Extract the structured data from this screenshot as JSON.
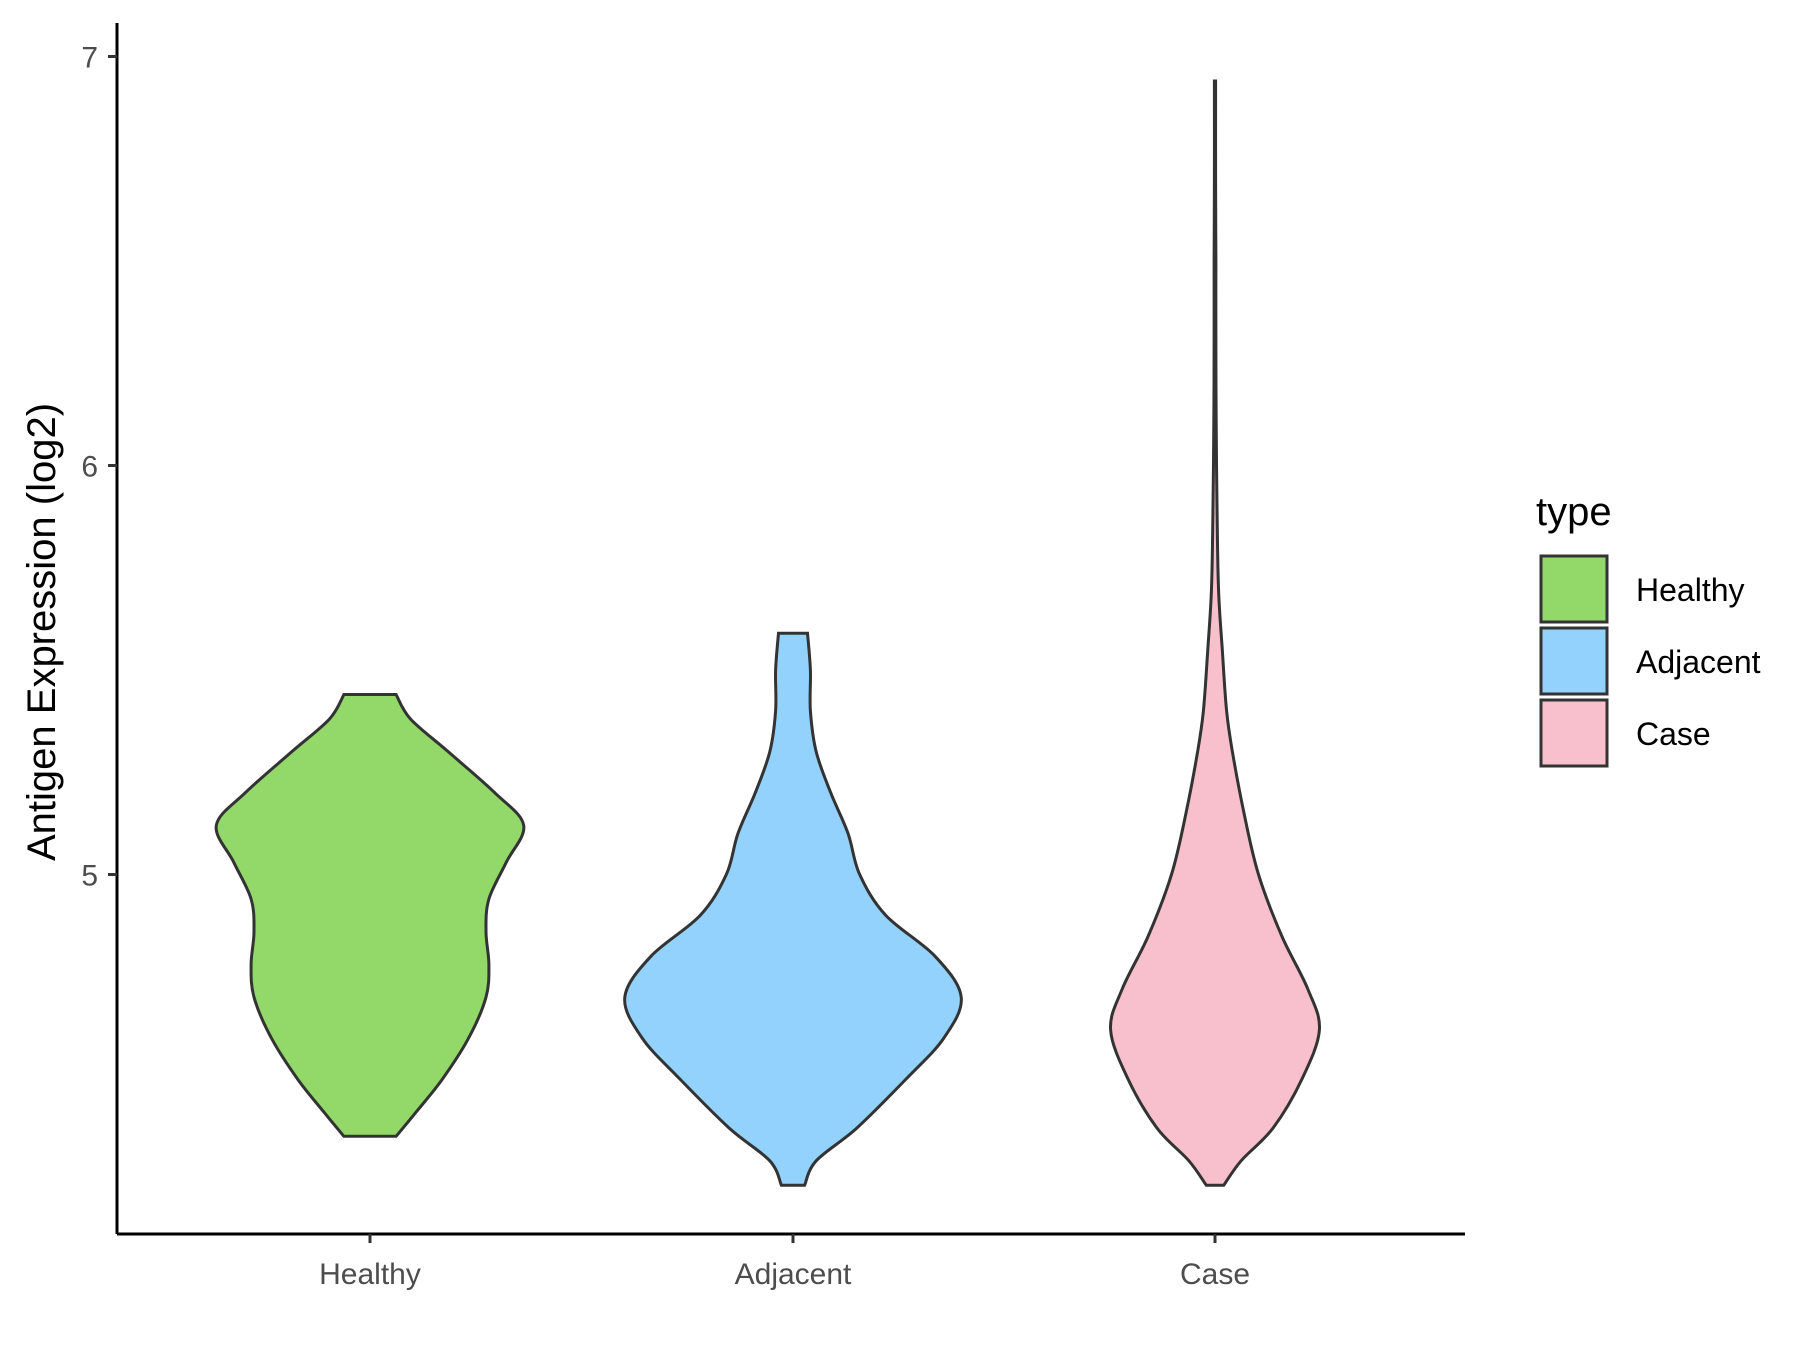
{
  "chart_data": {
    "type": "violin",
    "title": "",
    "xlabel": "",
    "ylabel": "Antigen Expression (log2)",
    "ylim": [
      4.15,
      7.08
    ],
    "yticks": [
      5,
      6,
      7
    ],
    "ytick_labels": [
      "5",
      "6",
      "7"
    ],
    "categories": [
      "Healthy",
      "Adjacent",
      "Case"
    ],
    "grid": false,
    "legend": {
      "title": "type",
      "position": "right",
      "entries": [
        {
          "label": "Healthy",
          "color": "#93d96a"
        },
        {
          "label": "Adjacent",
          "color": "#93d2fd"
        },
        {
          "label": "Case",
          "color": "#f7c0cc"
        }
      ]
    },
    "series": [
      {
        "category": "Healthy",
        "color": "#93d96a",
        "range": [
          4.36,
          5.44
        ],
        "density": [
          [
            4.36,
            0.09
          ],
          [
            4.42,
            0.16
          ],
          [
            4.5,
            0.25
          ],
          [
            4.6,
            0.34
          ],
          [
            4.7,
            0.4
          ],
          [
            4.78,
            0.41
          ],
          [
            4.86,
            0.4
          ],
          [
            4.94,
            0.41
          ],
          [
            5.03,
            0.47
          ],
          [
            5.12,
            0.53
          ],
          [
            5.2,
            0.43
          ],
          [
            5.3,
            0.27
          ],
          [
            5.38,
            0.14
          ],
          [
            5.44,
            0.09
          ]
        ]
      },
      {
        "category": "Adjacent",
        "color": "#93d2fd",
        "range": [
          4.24,
          5.59
        ],
        "density": [
          [
            4.24,
            0.04
          ],
          [
            4.3,
            0.08
          ],
          [
            4.38,
            0.22
          ],
          [
            4.5,
            0.39
          ],
          [
            4.6,
            0.52
          ],
          [
            4.7,
            0.58
          ],
          [
            4.8,
            0.49
          ],
          [
            4.9,
            0.32
          ],
          [
            5.0,
            0.23
          ],
          [
            5.1,
            0.19
          ],
          [
            5.2,
            0.13
          ],
          [
            5.3,
            0.08
          ],
          [
            5.4,
            0.06
          ],
          [
            5.5,
            0.06
          ],
          [
            5.59,
            0.05
          ]
        ]
      },
      {
        "category": "Case",
        "color": "#f7c0cc",
        "range": [
          4.24,
          6.94
        ],
        "density": [
          [
            4.24,
            0.03
          ],
          [
            4.3,
            0.09
          ],
          [
            4.38,
            0.2
          ],
          [
            4.5,
            0.3
          ],
          [
            4.62,
            0.36
          ],
          [
            4.72,
            0.32
          ],
          [
            4.85,
            0.23
          ],
          [
            5.0,
            0.15
          ],
          [
            5.15,
            0.1
          ],
          [
            5.3,
            0.06
          ],
          [
            5.4,
            0.04
          ],
          [
            5.55,
            0.025
          ],
          [
            5.7,
            0.012
          ],
          [
            5.9,
            0.007
          ],
          [
            6.1,
            0.004
          ],
          [
            6.3,
            0.003
          ],
          [
            6.5,
            0.003
          ],
          [
            6.7,
            0.002
          ],
          [
            6.94,
            0.002
          ]
        ]
      }
    ]
  }
}
